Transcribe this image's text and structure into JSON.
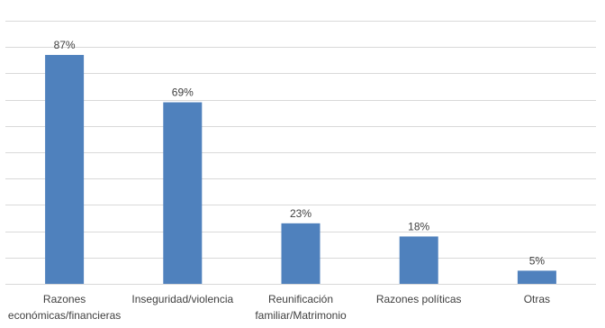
{
  "chart_data": {
    "type": "bar",
    "categories": [
      [
        "Razones",
        "económicas/financieras"
      ],
      [
        "Inseguridad/violencia"
      ],
      [
        "Reunificación",
        "familiar/Matrimonio"
      ],
      [
        "Razones políticas"
      ],
      [
        "Otras"
      ]
    ],
    "values": [
      87,
      69,
      23,
      18,
      5
    ],
    "data_labels": [
      "87%",
      "69%",
      "23%",
      "18%",
      "5%"
    ],
    "ylim": [
      0,
      100
    ],
    "grid": true,
    "legend": "none",
    "colors": {
      "bar": "#4f81bd",
      "grid": "#d9d9d9",
      "text": "#404040"
    }
  }
}
